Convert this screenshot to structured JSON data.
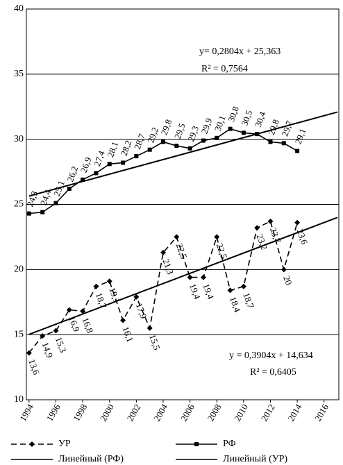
{
  "chart_data": {
    "type": "line",
    "x": [
      1994,
      1995,
      1996,
      1997,
      1998,
      1999,
      2000,
      2001,
      2002,
      2003,
      2004,
      2005,
      2006,
      2007,
      2008,
      2009,
      2010,
      2011,
      2012,
      2013,
      2014
    ],
    "series": [
      {
        "name": "УР",
        "color": "#000000",
        "dash": true,
        "marker": "diamond",
        "values": [
          13.6,
          14.9,
          15.3,
          16.9,
          16.8,
          18.7,
          19.1,
          16.1,
          17.9,
          15.5,
          21.3,
          22.5,
          19.4,
          19.4,
          22.5,
          18.4,
          18.7,
          23.2,
          23.7,
          20,
          23.6
        ],
        "value_labels": [
          "13,6",
          "14,9",
          "15,3",
          "16,9",
          "16,8",
          "18,7",
          "19,1",
          "16,1",
          "17,9",
          "15,5",
          "21,3",
          "22,5",
          "19,4",
          "19,4",
          "22,5",
          "18,4",
          "18,7",
          "23,2",
          "23,7",
          "20",
          "23,6"
        ]
      },
      {
        "name": "РФ",
        "color": "#000000",
        "dash": false,
        "marker": "square",
        "values": [
          24.3,
          24.4,
          25.1,
          26.2,
          26.9,
          27.4,
          28.1,
          28.2,
          28.7,
          29.2,
          29.8,
          29.5,
          29.3,
          29.9,
          30.1,
          30.8,
          30.5,
          30.4,
          29.8,
          29.7,
          29.1
        ],
        "value_labels": [
          "24,3",
          "24,4",
          "25,1",
          "26,2",
          "26,9",
          "27,4",
          "28,1",
          "28,2",
          "28,7",
          "29,2",
          "29,8",
          "29,5",
          "29,3",
          "29,9",
          "30,1",
          "30,8",
          "30,5",
          "30,4",
          "29,8",
          "29,7",
          "29,1"
        ]
      }
    ],
    "trendlines": [
      {
        "name": "Линейный (РФ)",
        "color": "#000000",
        "x": [
          1994,
          2017
        ],
        "values": [
          25.64,
          32.09
        ],
        "equation": "y= 0,2804x + 25,363",
        "r2": "R² = 0,7564"
      },
      {
        "name": "Линейный (УР)",
        "color": "#000000",
        "x": [
          1994,
          2017
        ],
        "values": [
          15.02,
          24.0
        ],
        "equation": "y = 0,3904x + 14,634",
        "r2": "R² = 0,6405"
      }
    ],
    "xlim": [
      1993.8,
      2017.1
    ],
    "xticks": [
      1994,
      1996,
      1998,
      2000,
      2002,
      2004,
      2006,
      2008,
      2010,
      2012,
      2014,
      2016
    ],
    "ylim": [
      10,
      40
    ],
    "yticks": [
      10,
      15,
      20,
      25,
      30,
      35,
      40
    ],
    "grid": true
  }
}
